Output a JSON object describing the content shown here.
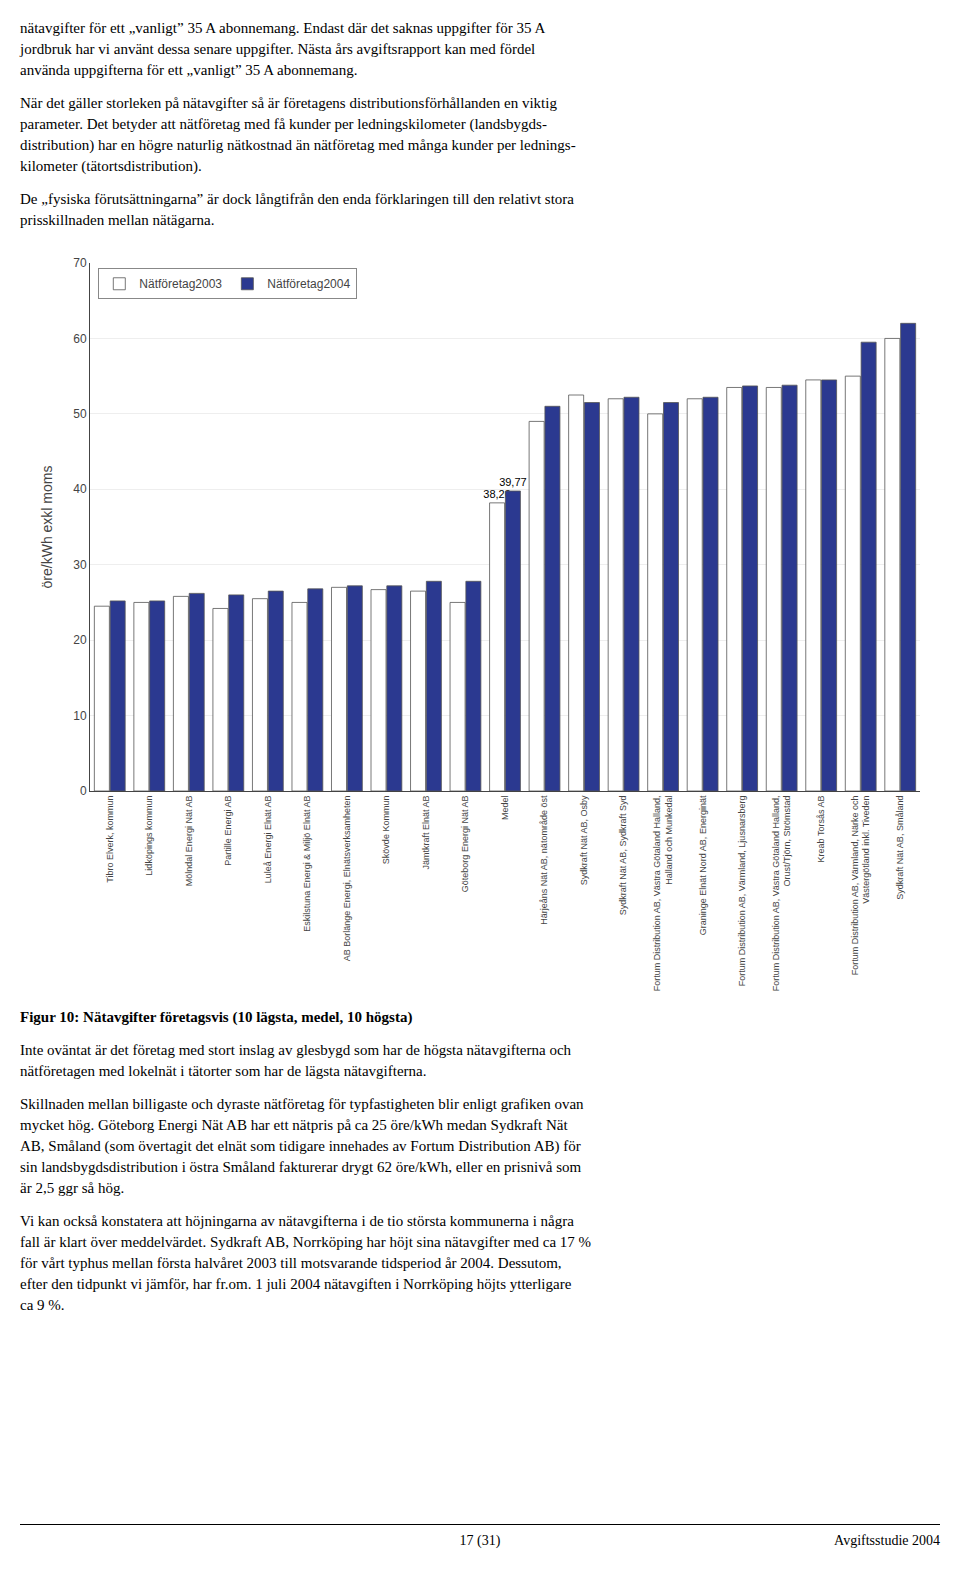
{
  "text_above": [
    [
      "nätavgifter för ett „vanligt” 35 A abonnemang. Endast där det saknas uppgifter för 35 A",
      "jordbruk har vi använt dessa senare uppgifter. Nästa års avgiftsrapport kan med fördel",
      "använda uppgifterna för ett „vanligt” 35 A abonnemang."
    ],
    [
      "När det gäller storleken på nätavgifter så är företagens distributionsförhållanden en viktig",
      "parameter. Det betyder att nätföretag med få kunder per ledningskilometer (landsbygds-",
      "distribution) har en högre naturlig nätkostnad än nätföretag med många kunder per lednings-",
      "kilometer (tätortsdistribution)."
    ],
    [
      "De „fysiska förutsättningarna” är dock långtifrån den enda förklaringen till den relativt stora",
      "prisskillnaden mellan nätägarna."
    ]
  ],
  "chart_data": {
    "type": "bar",
    "title": "Figur 10: Nätavgifter företagsvis (10 lägsta, medel, 10 högsta)",
    "ylabel": "öre/kWh exkl moms",
    "categories": [
      "Tibro Elverk, kommun",
      "Lidköpings kommun",
      "Mölndal Energi Nät AB",
      "Partille Energi AB",
      "Luleå Energi Elnät AB",
      "Eskilstuna Energi & Miljö Elnät AB",
      "AB Borlänge Energi, Elnätsverksamheten",
      "Skövde Kommun",
      "Jämtkraft Elnät AB",
      "Göteborg Energi Nät AB",
      "Medel",
      "Härjeåns Nät AB, nätområde öst",
      "Sydkraft Nät AB, Osby",
      "Sydkraft Nät AB, Sydkraft Syd",
      "Fortum Distribution AB, Västra Götaland Halland,\nHalland och Munkedal",
      "Graninge Elnät Nord AB, Energinät",
      "Fortum Distribution AB, Värmland, Ljusnarsberg",
      "Fortum Distribution AB, Västra Götaland Halland,\nOrust/Tjörn, Strömstad",
      "Kreab Torsås AB",
      "Fortum Distribution AB, Värmland, Närke och\nVästergötland inkl. Tiveden",
      "Sydkraft Nät AB, Småland"
    ],
    "series": [
      {
        "name": "Nätföretag2003",
        "color": "#FFFFFF",
        "values": [
          24.5,
          25.0,
          25.8,
          24.2,
          25.5,
          25.0,
          27.0,
          26.7,
          26.5,
          25.0,
          38.2,
          49.0,
          52.5,
          52.0,
          50.0,
          52.0,
          53.5,
          53.5,
          54.5,
          55.0,
          60.0
        ],
        "value_labels": [
          null,
          null,
          null,
          null,
          null,
          null,
          null,
          null,
          null,
          null,
          "38,20",
          null,
          null,
          null,
          null,
          null,
          null,
          null,
          null,
          null,
          null
        ]
      },
      {
        "name": "Nätföretag2004",
        "color": "#2B3990",
        "values": [
          25.2,
          25.2,
          26.2,
          26.0,
          26.5,
          26.8,
          27.2,
          27.2,
          27.8,
          27.8,
          39.77,
          51.0,
          51.5,
          52.2,
          51.5,
          52.2,
          53.7,
          53.8,
          54.5,
          59.5,
          62.0
        ],
        "value_labels": [
          null,
          null,
          null,
          null,
          null,
          null,
          null,
          null,
          null,
          null,
          "39,77",
          null,
          null,
          null,
          null,
          null,
          null,
          null,
          null,
          null,
          null
        ]
      }
    ],
    "ylim": [
      0,
      70
    ],
    "yticks": [
      0,
      10,
      20,
      30,
      40,
      50,
      60,
      70
    ],
    "grid": true,
    "legend": "upper left",
    "data_labels": true
  },
  "text_below": [
    [
      "Inte oväntat är det företag med stort inslag av glesbygd som har de högsta nätavgifterna och",
      "nätföretagen med lokelnät i tätorter som har de lägsta nätavgifterna."
    ],
    [
      "Skillnaden mellan billigaste och dyraste nätföretag för typfastigheten blir enligt grafiken ovan",
      "mycket hög. Göteborg Energi Nät AB har ett nätpris på ca 25 öre/kWh medan Sydkraft Nät",
      "AB, Småland (som övertagit det elnät som tidigare innehades av Fortum Distribution AB) för",
      "sin landsbygdsdistribution i östra Småland fakturerar drygt 62 öre/kWh, eller en prisnivå som",
      "är 2,5 ggr så hög."
    ],
    [
      "Vi kan också konstatera att höjningarna av nätavgifterna i de tio största kommunerna i några",
      "fall är klart över meddelvärdet. Sydkraft AB, Norrköping har höjt sina nätavgifter med ca 17 %",
      "för vårt typhus mellan första halvåret 2003 till motsvarande tidsperiod år 2004. Dessutom,",
      "efter den tidpunkt vi jämför, har fr.om. 1 juli 2004 nätavgiften i Norrköping höjts ytterligare",
      "ca 9 %."
    ]
  ],
  "footer": [
    "17 (31)",
    "Avgiftsstudie 2004"
  ]
}
